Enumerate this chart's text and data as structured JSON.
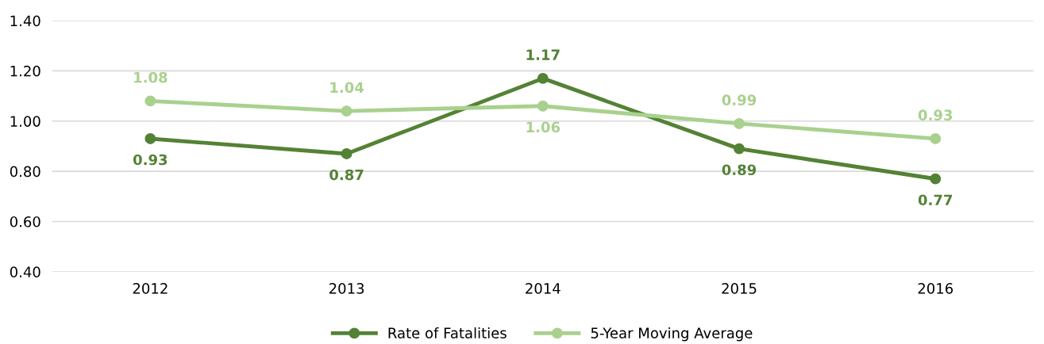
{
  "chart_data": {
    "type": "line",
    "categories": [
      "2012",
      "2013",
      "2014",
      "2015",
      "2016"
    ],
    "series": [
      {
        "name": "Rate of Fatalities",
        "color": "#548235",
        "values": [
          0.93,
          0.87,
          1.17,
          0.89,
          0.77
        ],
        "value_labels": [
          "0.93",
          "0.87",
          "1.17",
          "0.89",
          "0.77"
        ]
      },
      {
        "name": "5-Year Moving Average",
        "color": "#a9d18e",
        "values": [
          1.08,
          1.04,
          1.06,
          0.99,
          0.93
        ],
        "value_labels": [
          "1.08",
          "1.04",
          "1.06",
          "0.99",
          "0.93"
        ]
      }
    ],
    "ylim": [
      0.4,
      1.4
    ],
    "yticks": [
      {
        "value": 0.4,
        "label": "0.40"
      },
      {
        "value": 0.6,
        "label": "0.60"
      },
      {
        "value": 0.8,
        "label": "0.80"
      },
      {
        "value": 1.0,
        "label": "1.00"
      },
      {
        "value": 1.2,
        "label": "1.20"
      },
      {
        "value": 1.4,
        "label": "1.40"
      }
    ],
    "grid": "y",
    "legend": "bottom",
    "marker": "circle",
    "line_style": "solid"
  }
}
